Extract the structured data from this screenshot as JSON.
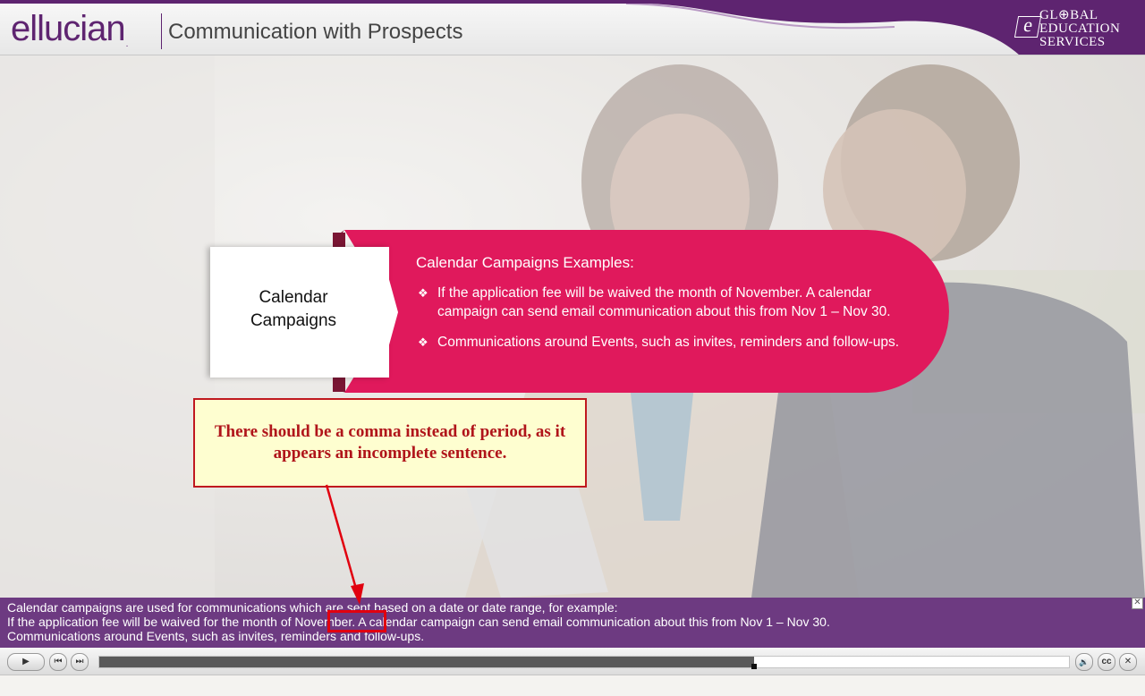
{
  "header": {
    "logo_text": "ellucian",
    "logo_reg": ".",
    "module_title": "Communication with Prospects",
    "partner_logo": {
      "mark": "e",
      "line1": "GL⊕BAL",
      "line2": "EDUCATION",
      "line3": "SERVICES"
    }
  },
  "slide": {
    "tab_label_line1": "Calendar",
    "tab_label_line2": "Campaigns",
    "panel_title": "Calendar Campaigns Examples:",
    "bullets": [
      "If the application fee will be waived the month of November. A calendar campaign can send email communication about this from Nov 1 – Nov 30.",
      "Communications around Events, such as invites, reminders and follow-ups."
    ],
    "bullet_glyph": "❖"
  },
  "callout": {
    "text": "There should be a comma instead of period, as it appears an incomplete sentence."
  },
  "captions": {
    "lines": [
      "Calendar campaigns are used for communications which are sent based on a date or date range, for example:",
      "If the application fee will be waived for the month of November. A calendar campaign can send email communication about this from Nov 1 – Nov 30.",
      "Communications around Events, such as invites, reminders and follow-ups."
    ],
    "close_glyph": "✕"
  },
  "player": {
    "play_icon": "▶",
    "prev_icon": "⏮",
    "next_icon": "⏭",
    "progress": 0.675,
    "volume_icon": "🔉",
    "cc_label": "cc",
    "close_icon": "✕"
  },
  "colors": {
    "brand_purple": "#5e2470",
    "slide_magenta": "#e0195c",
    "caption_bg": "#6d3a81",
    "annotation_red": "#e1000f"
  }
}
